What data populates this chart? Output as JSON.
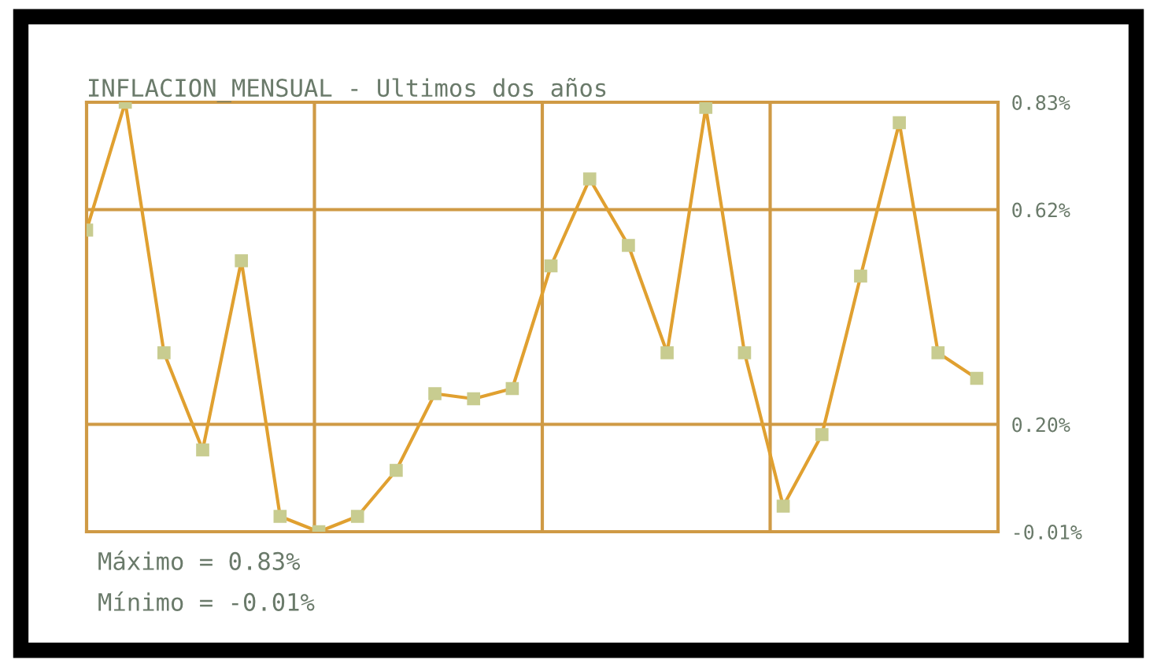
{
  "chart_data": {
    "type": "line",
    "title": "INFLACION_MENSUAL - Ultimos dos años",
    "categories": [
      null,
      null,
      null,
      null,
      null,
      null,
      null,
      null,
      null,
      null,
      null,
      null,
      null,
      null,
      null,
      null,
      null,
      null,
      null,
      null,
      null,
      null,
      null,
      null
    ],
    "series": [
      {
        "color": "#e0a030",
        "values": [
          0.58,
          0.83,
          0.34,
          0.15,
          0.52,
          0.02,
          -0.01,
          0.02,
          0.11,
          0.26,
          0.25,
          0.27,
          0.51,
          0.68,
          0.55,
          0.34,
          0.82,
          0.34,
          0.04,
          0.18,
          0.49,
          0.79,
          0.34,
          0.29
        ]
      }
    ],
    "ylim": [
      -0.01,
      0.83
    ],
    "yticks": [
      {
        "value": 0.83,
        "label": "0.83%"
      },
      {
        "value": 0.62,
        "label": "0.62%"
      },
      {
        "value": 0.2,
        "label": "0.20%"
      },
      {
        "value": -0.01,
        "label": "-0.01%"
      }
    ],
    "grid": true,
    "marker": "square",
    "line_style": "solid",
    "annotations": [
      "Máximo = 0.83%",
      "Mínimo = -0.01%"
    ]
  }
}
